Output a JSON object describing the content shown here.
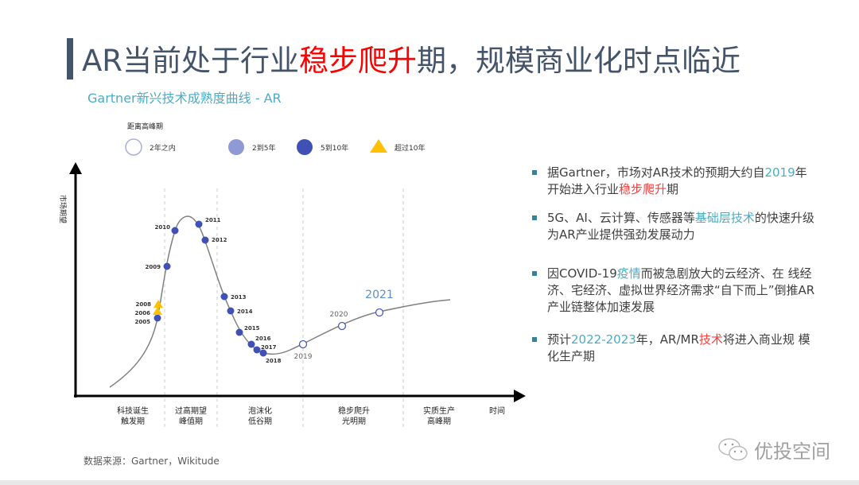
{
  "title": {
    "pre": "AR当前处于行业",
    "highlight": "稳步爬升",
    "post": "期，规模商业化时点临近"
  },
  "subtitle": "Gartner新兴技术成熟度曲线 - AR",
  "diagram": {
    "legend_title": "距离高峰期",
    "legend": [
      {
        "label": "2年之内",
        "marker": "hollow-circle",
        "color": "#aab0d8"
      },
      {
        "label": "2到5年",
        "marker": "circle",
        "color": "#8e99d6"
      },
      {
        "label": "5到10年",
        "marker": "circle",
        "color": "#3f51b5"
      },
      {
        "label": "超过10年",
        "marker": "triangle",
        "color": "#ffc000"
      }
    ],
    "y_axis_label": "市场期望",
    "x_axis_label": "时间",
    "phases": [
      "科技诞生\n触发期",
      "过高期望\n峰值期",
      "泡沫化\n低谷期",
      "稳步爬升\n光明期",
      "实质生产\n高峰期"
    ],
    "points": [
      {
        "year": "2005",
        "category": "5到10年"
      },
      {
        "year": "2006",
        "category": "超过10年"
      },
      {
        "year": "2008",
        "category": "超过10年"
      },
      {
        "year": "2009",
        "category": "5到10年"
      },
      {
        "year": "2010",
        "category": "5到10年"
      },
      {
        "year": "2011",
        "category": "5到10年"
      },
      {
        "year": "2012",
        "category": "5到10年"
      },
      {
        "year": "2013",
        "category": "5到10年"
      },
      {
        "year": "2014",
        "category": "5到10年"
      },
      {
        "year": "2015",
        "category": "5到10年"
      },
      {
        "year": "2016",
        "category": "5到10年"
      },
      {
        "year": "2017",
        "category": "5到10年"
      },
      {
        "year": "2018",
        "category": "5到10年"
      },
      {
        "year": "2019",
        "category": "2年之内"
      },
      {
        "year": "2020",
        "category": "2年之内"
      },
      {
        "year": "2021",
        "category": "2年之内"
      }
    ]
  },
  "bullets": [
    [
      {
        "t": "据Gartner，市场对AR技术的预期大约自"
      },
      {
        "t": "2019",
        "c": "blue"
      },
      {
        "t": "年开始进入行业"
      },
      {
        "t": "稳步爬升",
        "c": "red"
      },
      {
        "t": "期"
      }
    ],
    [
      {
        "t": "5G、AI、云计算、传感器等"
      },
      {
        "t": "基础层技术",
        "c": "blue"
      },
      {
        "t": "的快速升级为AR产业提供强劲发展动力"
      }
    ],
    [
      {
        "t": "因COVID-19"
      },
      {
        "t": "疫情",
        "c": "blue"
      },
      {
        "t": "而被急剧放大的云经济、在 线经济、宅经济、虚拟世界经济需求“自下而上”倒推AR产业链整体加速发展"
      }
    ],
    [
      {
        "t": "预计"
      },
      {
        "t": "2022-2023",
        "c": "blue"
      },
      {
        "t": "年，AR/MR"
      },
      {
        "t": "技术",
        "c": "red"
      },
      {
        "t": "将进入商业规 模化生产期"
      }
    ]
  ],
  "source": "数据来源：Gartner，Wikitude",
  "brand": "优投空间"
}
